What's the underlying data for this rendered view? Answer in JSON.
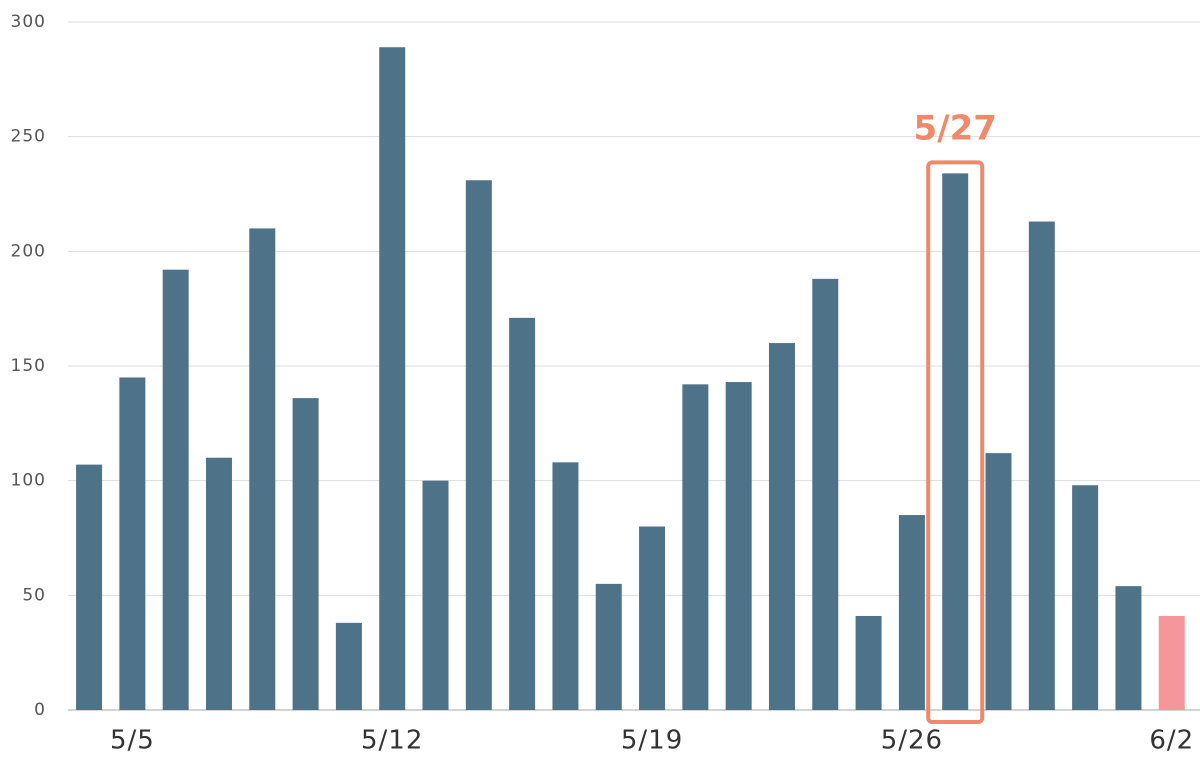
{
  "chart_data": {
    "type": "bar",
    "categories": [
      null,
      "5/5",
      null,
      null,
      null,
      null,
      null,
      "5/12",
      null,
      null,
      null,
      null,
      null,
      "5/19",
      null,
      null,
      null,
      null,
      null,
      "5/26",
      null,
      null,
      null,
      null,
      null,
      "6/2"
    ],
    "values": [
      107,
      145,
      192,
      110,
      210,
      136,
      38,
      289,
      100,
      231,
      171,
      108,
      55,
      80,
      142,
      143,
      160,
      188,
      41,
      85,
      234,
      112,
      213,
      98,
      54,
      41
    ],
    "colors": [
      "#4e7389",
      "#4e7389",
      "#4e7389",
      "#4e7389",
      "#4e7389",
      "#4e7389",
      "#4e7389",
      "#4e7389",
      "#4e7389",
      "#4e7389",
      "#4e7389",
      "#4e7389",
      "#4e7389",
      "#4e7389",
      "#4e7389",
      "#4e7389",
      "#4e7389",
      "#4e7389",
      "#4e7389",
      "#4e7389",
      "#4e7389",
      "#4e7389",
      "#4e7389",
      "#4e7389",
      "#4e7389",
      "#f4969a"
    ],
    "ylim": [
      0,
      300
    ],
    "yticks": [
      0,
      50,
      100,
      150,
      200,
      250,
      300
    ],
    "grid": true,
    "highlight": {
      "text": "5/27",
      "index": 20,
      "color": "#f0886a"
    }
  }
}
